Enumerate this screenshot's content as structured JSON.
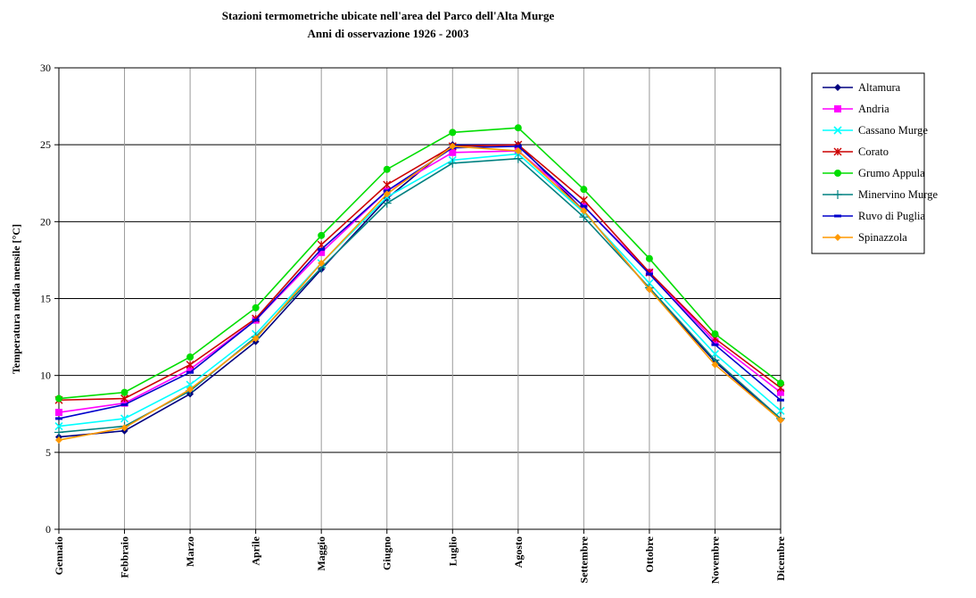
{
  "chart_data": {
    "type": "line",
    "title": "Stazioni termometriche ubicate nell'area del Parco dell'Alta Murge",
    "subtitle": "Anni di osservazione 1926 - 2003",
    "xlabel": "",
    "ylabel": "Temperatura media mensile [°C]",
    "ylim": [
      0,
      30
    ],
    "yticks": [
      "0",
      "5",
      "10",
      "15",
      "20",
      "25",
      "30"
    ],
    "grid": true,
    "legend_position": "right",
    "categories": [
      "Gennaio",
      "Febbraio",
      "Marzo",
      "Aprile",
      "Maggio",
      "Giugno",
      "Luglio",
      "Agosto",
      "Settembre",
      "Ottobre",
      "Novembre",
      "Dicembre"
    ],
    "series": [
      {
        "name": "Altamura",
        "color": "#000080",
        "marker": "diamond",
        "values": [
          6.0,
          6.4,
          8.8,
          12.2,
          16.9,
          21.5,
          25.0,
          25.0,
          20.7,
          15.6,
          10.9,
          7.1
        ]
      },
      {
        "name": "Andria",
        "color": "#ff00ff",
        "marker": "square",
        "values": [
          7.6,
          8.2,
          10.4,
          13.6,
          18.0,
          22.0,
          24.5,
          24.6,
          21.0,
          16.7,
          12.2,
          8.9
        ]
      },
      {
        "name": "Cassano Murge",
        "color": "#00ffff",
        "marker": "x",
        "values": [
          6.7,
          7.2,
          9.4,
          12.7,
          17.3,
          21.6,
          24.0,
          24.4,
          20.6,
          16.0,
          11.4,
          7.7
        ]
      },
      {
        "name": "Corato",
        "color": "#cc0000",
        "marker": "star",
        "values": [
          8.4,
          8.5,
          10.7,
          13.7,
          18.5,
          22.4,
          24.9,
          25.0,
          21.4,
          16.7,
          12.4,
          9.2
        ]
      },
      {
        "name": "Grumo Appula",
        "color": "#00dd00",
        "marker": "circle",
        "values": [
          8.5,
          8.9,
          11.2,
          14.4,
          19.1,
          23.4,
          25.8,
          26.1,
          22.1,
          17.6,
          12.7,
          9.5
        ]
      },
      {
        "name": "Minervino Murge",
        "color": "#008080",
        "marker": "plus",
        "values": [
          6.3,
          6.7,
          9.0,
          12.5,
          17.0,
          21.2,
          23.8,
          24.1,
          20.3,
          15.7,
          11.0,
          7.2
        ]
      },
      {
        "name": "Ruvo di Puglia",
        "color": "#0000cc",
        "marker": "dash",
        "values": [
          7.2,
          8.1,
          10.2,
          13.6,
          18.2,
          22.0,
          24.8,
          24.9,
          21.0,
          16.6,
          12.0,
          8.4
        ]
      },
      {
        "name": "Spinazzola",
        "color": "#ff9900",
        "marker": "diamond",
        "values": [
          5.8,
          6.6,
          9.1,
          12.4,
          17.3,
          21.8,
          24.9,
          24.6,
          20.7,
          15.6,
          10.7,
          7.1
        ]
      }
    ]
  }
}
